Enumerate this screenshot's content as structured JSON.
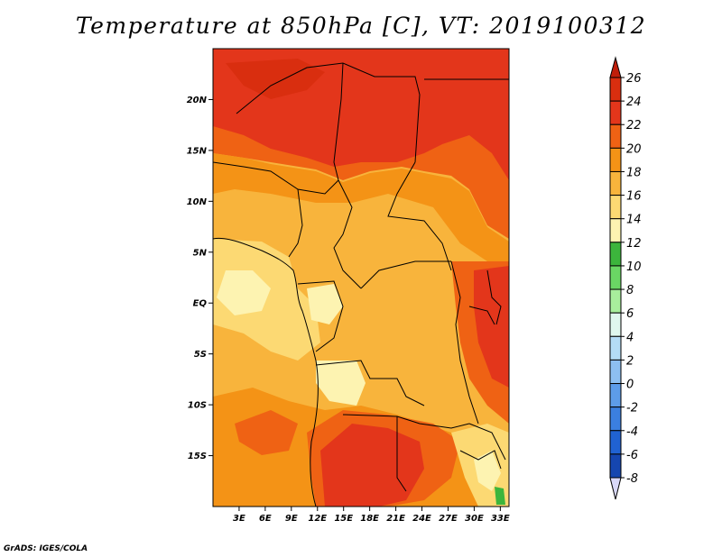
{
  "title": "Temperature at 850hPa [C], VT: 2019100312",
  "credit": "GrADS: IGES/COLA",
  "map": {
    "variable": "Temperature",
    "level": "850hPa",
    "units": "C",
    "valid_time": "2019100312",
    "lon_range": [
      0,
      34
    ],
    "lat_range": [
      -20,
      25
    ],
    "lat_ticks": [
      {
        "label": "20N",
        "value": 20
      },
      {
        "label": "15N",
        "value": 15
      },
      {
        "label": "10N",
        "value": 10
      },
      {
        "label": "5N",
        "value": 5
      },
      {
        "label": "EQ",
        "value": 0
      },
      {
        "label": "5S",
        "value": -5
      },
      {
        "label": "10S",
        "value": -10
      },
      {
        "label": "15S",
        "value": -15
      }
    ],
    "lon_ticks": [
      {
        "label": "3E",
        "value": 3
      },
      {
        "label": "6E",
        "value": 6
      },
      {
        "label": "9E",
        "value": 9
      },
      {
        "label": "12E",
        "value": 12
      },
      {
        "label": "15E",
        "value": 15
      },
      {
        "label": "18E",
        "value": 18
      },
      {
        "label": "21E",
        "value": 21
      },
      {
        "label": "24E",
        "value": 24
      },
      {
        "label": "27E",
        "value": 27
      },
      {
        "label": "30E",
        "value": 30
      },
      {
        "label": "33E",
        "value": 33
      }
    ]
  },
  "colorbar": {
    "levels": [
      {
        "label": "26",
        "color": "#d92e0f"
      },
      {
        "label": "24",
        "color": "#e3361b"
      },
      {
        "label": "22",
        "color": "#ef6214"
      },
      {
        "label": "20",
        "color": "#f49316"
      },
      {
        "label": "18",
        "color": "#f8b43c"
      },
      {
        "label": "16",
        "color": "#fcd973"
      },
      {
        "label": "14",
        "color": "#fdf3b1"
      },
      {
        "label": "12",
        "color": "#3cb53c"
      },
      {
        "label": "10",
        "color": "#6ad764"
      },
      {
        "label": "8",
        "color": "#a8ee9c"
      },
      {
        "label": "6",
        "color": "#e0f7ee"
      },
      {
        "label": "4",
        "color": "#b4dcf6"
      },
      {
        "label": "2",
        "color": "#8dbff1"
      },
      {
        "label": "0",
        "color": "#5d9ce9"
      },
      {
        "label": "-2",
        "color": "#3b7fe0"
      },
      {
        "label": "-4",
        "color": "#2062d2"
      },
      {
        "label": "-6",
        "color": "#1546b0"
      },
      {
        "label": "-8",
        "color": "#0c1a78"
      }
    ],
    "top_arrow_color": "#c01e0a",
    "bottom_arrow_color": "#d8d8f8"
  }
}
